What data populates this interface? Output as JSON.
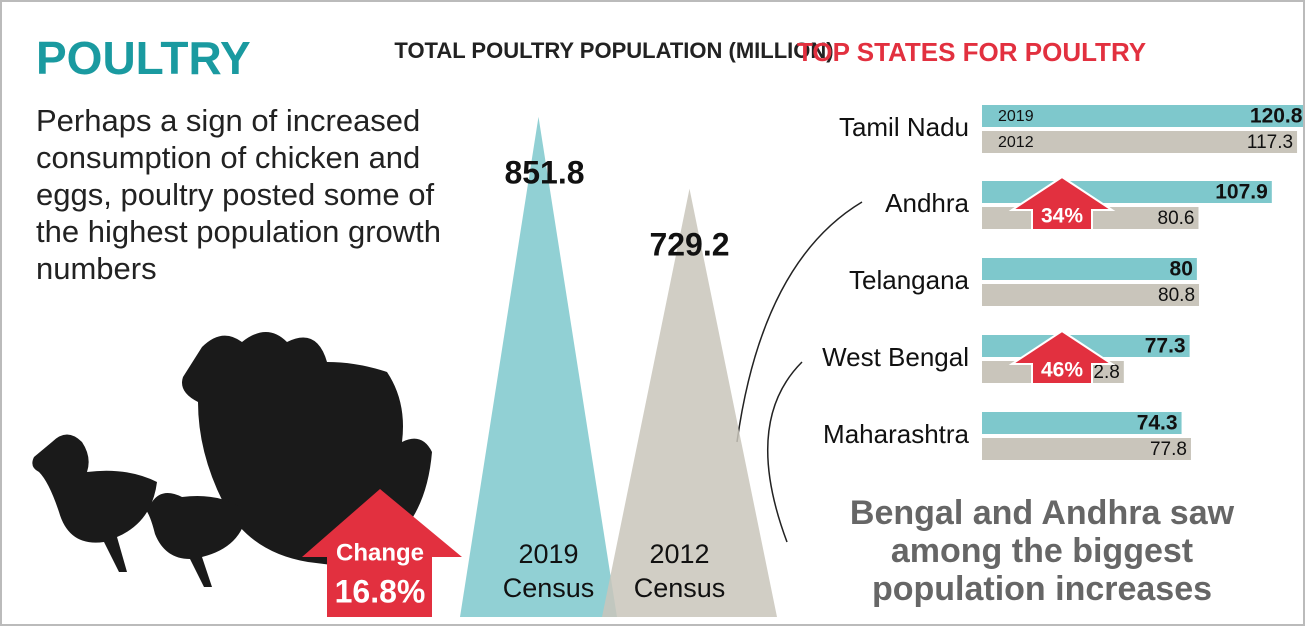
{
  "headline": "POULTRY",
  "description": "Perhaps a sign of increased consumption of chicken and eggs, poultry posted some of the highest population growth numbers",
  "chart_data": [
    {
      "type": "triangle",
      "title": "TOTAL POULTRY POPULATION (MILLION)",
      "categories": [
        "2019 Census",
        "2012 Census"
      ],
      "values": [
        851.8,
        729.2
      ],
      "colors": [
        "#7ec8cc",
        "#c9c5bb"
      ],
      "ylim": [
        0,
        860
      ],
      "annotation": {
        "label": "Change",
        "value": 16.8,
        "value_label": "16.8%"
      }
    },
    {
      "type": "hbar",
      "title": "TOP STATES FOR POULTRY",
      "categories": [
        "Tamil Nadu",
        "Andhra",
        "Telangana",
        "West Bengal",
        "Maharashtra"
      ],
      "series": [
        {
          "name": "2019",
          "color": "#7ec8cc",
          "values": [
            120.8,
            107.9,
            80,
            77.3,
            74.3
          ]
        },
        {
          "name": "2012",
          "color": "#c9c5bb",
          "values": [
            117.3,
            80.6,
            80.8,
            52.8,
            77.8
          ]
        }
      ],
      "xlim": [
        0,
        121
      ],
      "annotations": [
        {
          "category": "Andhra",
          "value": 34,
          "label": "34%"
        },
        {
          "category": "West Bengal",
          "value": 46,
          "label": "46%"
        }
      ],
      "note": "Bengal and Andhra saw among the biggest population increases"
    }
  ]
}
